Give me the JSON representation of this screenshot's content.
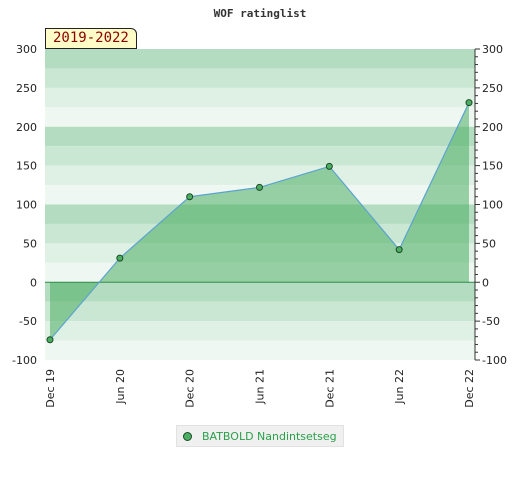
{
  "chart_data": {
    "type": "area",
    "title": "WOF ratinglist",
    "badge": "2019-2022",
    "x": [
      "Dec 19",
      "Jun 20",
      "Dec 20",
      "Jun 21",
      "Dec 21",
      "Jun 22",
      "Dec 22"
    ],
    "series": [
      {
        "name": "BATBOLD Nandintsetseg",
        "values": [
          -74,
          31,
          110,
          122,
          149,
          42,
          231
        ]
      }
    ],
    "ylim": [
      -100,
      300
    ],
    "yticks": [
      -100,
      -50,
      0,
      50,
      100,
      150,
      200,
      250,
      300
    ],
    "grid": "horizontal bands",
    "legend_position": "bottom"
  },
  "colors": {
    "line": "#5ba3cf",
    "area": "#4cae62",
    "marker": "#4cae62",
    "legend_text": "#2aa04a",
    "badge_bg": "#fffcc8",
    "badge_text": "#8b0000"
  }
}
